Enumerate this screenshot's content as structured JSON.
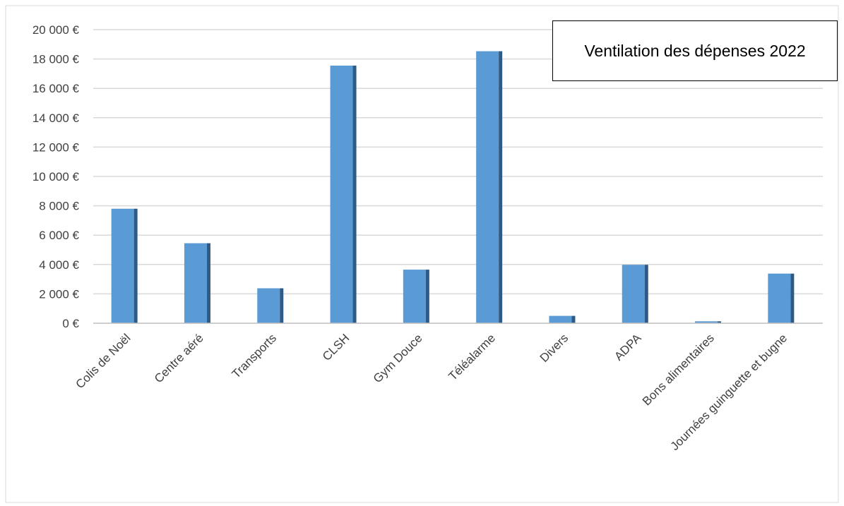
{
  "chart_data": {
    "type": "bar",
    "title": "Ventilation des dépenses 2022",
    "xlabel": "",
    "ylabel": "",
    "ylim": [
      0,
      20000
    ],
    "yticks": [
      0,
      2000,
      4000,
      6000,
      8000,
      10000,
      12000,
      14000,
      16000,
      18000,
      20000
    ],
    "ytick_labels": [
      "0 €",
      "2 000 €",
      "4 000 €",
      "6 000 €",
      "8 000 €",
      "10 000 €",
      "12 000 €",
      "14 000 €",
      "16 000 €",
      "18 000 €",
      "20 000 €"
    ],
    "categories": [
      "Colis de Noël",
      "Centre aéré",
      "Transports",
      "CLSH",
      "Gym Douce",
      "Téléalarme",
      "Divers",
      "ADPA",
      "Bons alimentaires",
      "Journées guinguette et bugne"
    ],
    "values": [
      7800,
      5450,
      2380,
      17550,
      3650,
      18530,
      500,
      3980,
      130,
      3380
    ],
    "grid": true,
    "legend": "none",
    "colors": {
      "bar_front": "#5B9BD5",
      "bar_side": "#2E5A87",
      "grid": "#D9D9D9",
      "axis": "#BFBFBF",
      "text": "#404040"
    }
  }
}
